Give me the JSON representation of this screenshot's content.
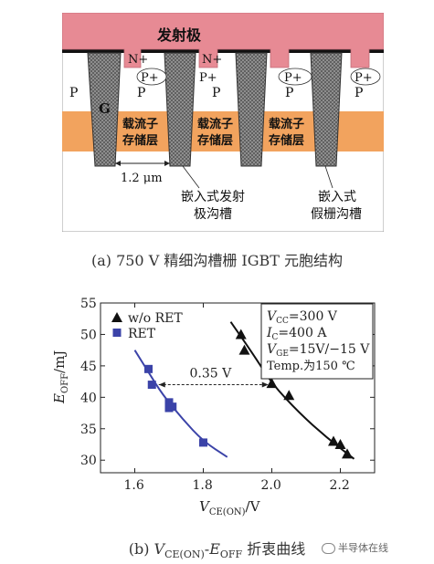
{
  "figure_a": {
    "emitter_label": "发射极",
    "n_plus": "N+",
    "p_plus": "P+",
    "p": "P",
    "g": "G",
    "carrier_layer_line1": "载流子",
    "carrier_layer_line2": "存储层",
    "width_label": "1.2 μm",
    "embedded_emitter_trench_l1": "嵌入式发射",
    "embedded_emitter_trench_l2": "极沟槽",
    "embedded_dummy_trench_l1": "嵌入式",
    "embedded_dummy_trench_l2": "假栅沟槽",
    "caption": "(a) 750 V 精细沟槽栅 IGBT 元胞结构"
  },
  "figure_b": {
    "caption_prefix": "(b) ",
    "caption_v": "V",
    "caption_v_sub": "CE(ON)",
    "caption_dash": "-",
    "caption_e": "E",
    "caption_e_sub": "OFF",
    "caption_suffix": " 折衷曲线",
    "conditions": {
      "vcc": "=300 V",
      "ic": "=400 A",
      "vge": "=15V/−15 V",
      "temp": "Temp.为150 ℃",
      "vcc_sym": "V",
      "vcc_sub": "CC",
      "ic_sym": "I",
      "ic_sub": "C",
      "vge_sym": "V",
      "vge_sub": "GE"
    },
    "annotation": "0.35 V",
    "ylabel_e": "E",
    "ylabel_sub": "OFF",
    "ylabel_unit": "/mJ",
    "xlabel_v": "V",
    "xlabel_sub": "CE(ON)",
    "xlabel_unit": "/V"
  },
  "watermark": "半导体在线",
  "colors": {
    "substrate": "#f2a35e",
    "emitter_metal": "#e78a94",
    "series_ret": "#3b43a8",
    "series_wo": "#111111"
  },
  "chart_data": {
    "type": "scatter",
    "xlabel": "VCE(ON)/V",
    "ylabel": "EOFF/mJ",
    "xlim": [
      1.5,
      2.3
    ],
    "ylim": [
      28,
      55
    ],
    "x_ticks": [
      1.6,
      1.8,
      2.0,
      2.2
    ],
    "y_ticks": [
      30,
      35,
      40,
      45,
      50,
      55
    ],
    "x_tick_labels": [
      "1.6",
      "1.8",
      "2.0",
      "2.2"
    ],
    "y_tick_labels": [
      "30",
      "35",
      "40",
      "45",
      "50",
      "55"
    ],
    "legend_position": "top-left",
    "series": [
      {
        "name": "w/o RET",
        "marker": "triangle",
        "x": [
          1.91,
          1.92,
          2.0,
          2.05,
          2.18,
          2.2,
          2.22
        ],
        "y": [
          50.0,
          47.5,
          42.2,
          40.3,
          33.0,
          32.5,
          31.0
        ],
        "fit": [
          [
            1.88,
            52.0
          ],
          [
            1.95,
            46.5
          ],
          [
            2.0,
            42.2
          ],
          [
            2.08,
            37.5
          ],
          [
            2.16,
            33.6
          ],
          [
            2.24,
            30.2
          ]
        ]
      },
      {
        "name": "RET",
        "marker": "square",
        "x": [
          1.64,
          1.65,
          1.7,
          1.7,
          1.71,
          1.8
        ],
        "y": [
          44.5,
          42.0,
          39.2,
          38.3,
          38.5,
          32.8
        ],
        "fit": [
          [
            1.6,
            47.5
          ],
          [
            1.64,
            44.0
          ],
          [
            1.68,
            40.5
          ],
          [
            1.74,
            36.5
          ],
          [
            1.8,
            33.0
          ],
          [
            1.87,
            30.5
          ]
        ]
      }
    ]
  }
}
